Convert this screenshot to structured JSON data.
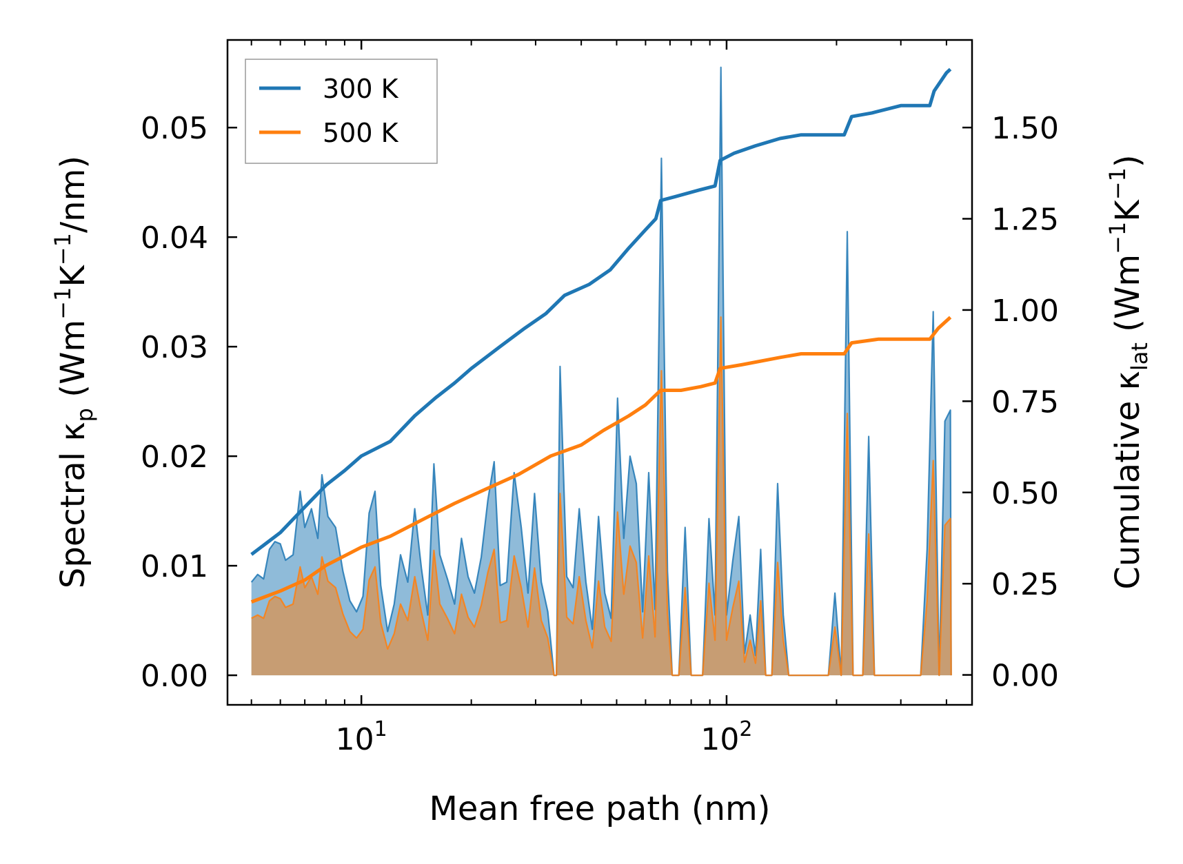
{
  "chart_data": {
    "type": "line",
    "xscale": "log",
    "xlim": [
      4.3,
      470
    ],
    "ylim_left": [
      -0.0027,
      0.058
    ],
    "ylim_right": [
      -0.082,
      1.74
    ],
    "xlabel": "Mean free path (nm)",
    "ylabel_left_prefix": "Spectral κ",
    "ylabel_left_sub": "p",
    "ylabel_left_suffix1": " (Wm",
    "ylabel_left_sup1": "−1",
    "ylabel_left_suffix2": "K",
    "ylabel_left_sup2": "−1",
    "ylabel_left_suffix3": "/nm)",
    "ylabel_right_prefix": "Cumulative κ",
    "ylabel_right_sub": "lat",
    "ylabel_right_suffix1": " (Wm",
    "ylabel_right_sup1": "−1",
    "ylabel_right_suffix2": "K",
    "ylabel_right_sup2": "−1",
    "ylabel_right_suffix3": ")",
    "x_ticks": [
      {
        "base": "10",
        "exp": "1",
        "value": 10
      },
      {
        "base": "10",
        "exp": "2",
        "value": 100
      }
    ],
    "y_ticks_left": [
      "0.00",
      "0.01",
      "0.02",
      "0.03",
      "0.04",
      "0.05"
    ],
    "y_ticks_right": [
      "0.00",
      "0.25",
      "0.50",
      "0.75",
      "1.00",
      "1.25",
      "1.50"
    ],
    "legend": {
      "position": "top-left",
      "entries": [
        {
          "label": "300 K",
          "color": "#1f77b4"
        },
        {
          "label": "500 K",
          "color": "#ff7f0e"
        }
      ]
    },
    "cumulative": [
      {
        "name": "300 K",
        "color": "#1f77b4",
        "points": [
          [
            5,
            0.33
          ],
          [
            6,
            0.39
          ],
          [
            7,
            0.46
          ],
          [
            8,
            0.52
          ],
          [
            9,
            0.56
          ],
          [
            10,
            0.6
          ],
          [
            12,
            0.64
          ],
          [
            14,
            0.71
          ],
          [
            16,
            0.76
          ],
          [
            18,
            0.8
          ],
          [
            20,
            0.84
          ],
          [
            24,
            0.9
          ],
          [
            28,
            0.95
          ],
          [
            32,
            0.99
          ],
          [
            36,
            1.04
          ],
          [
            42,
            1.07
          ],
          [
            48,
            1.11
          ],
          [
            54,
            1.17
          ],
          [
            60,
            1.22
          ],
          [
            64,
            1.25
          ],
          [
            66,
            1.3
          ],
          [
            72,
            1.31
          ],
          [
            85,
            1.33
          ],
          [
            93,
            1.34
          ],
          [
            96,
            1.41
          ],
          [
            105,
            1.43
          ],
          [
            120,
            1.45
          ],
          [
            140,
            1.47
          ],
          [
            160,
            1.48
          ],
          [
            210,
            1.48
          ],
          [
            220,
            1.53
          ],
          [
            250,
            1.54
          ],
          [
            300,
            1.56
          ],
          [
            360,
            1.56
          ],
          [
            370,
            1.6
          ],
          [
            400,
            1.65
          ],
          [
            410,
            1.66
          ]
        ]
      },
      {
        "name": "500 K",
        "color": "#ff7f0e",
        "points": [
          [
            5,
            0.2
          ],
          [
            6,
            0.23
          ],
          [
            7,
            0.26
          ],
          [
            8,
            0.3
          ],
          [
            10,
            0.35
          ],
          [
            12,
            0.38
          ],
          [
            15,
            0.43
          ],
          [
            18,
            0.47
          ],
          [
            22,
            0.51
          ],
          [
            27,
            0.55
          ],
          [
            33,
            0.6
          ],
          [
            40,
            0.63
          ],
          [
            46,
            0.67
          ],
          [
            54,
            0.71
          ],
          [
            60,
            0.74
          ],
          [
            66,
            0.78
          ],
          [
            75,
            0.78
          ],
          [
            85,
            0.79
          ],
          [
            93,
            0.8
          ],
          [
            96,
            0.84
          ],
          [
            110,
            0.85
          ],
          [
            140,
            0.87
          ],
          [
            160,
            0.88
          ],
          [
            210,
            0.88
          ],
          [
            220,
            0.91
          ],
          [
            260,
            0.92
          ],
          [
            360,
            0.92
          ],
          [
            380,
            0.95
          ],
          [
            410,
            0.98
          ]
        ]
      }
    ],
    "spectral": [
      {
        "name": "300 K",
        "color": "#1f77b4",
        "points": [
          [
            5,
            0.0085
          ],
          [
            5.2,
            0.0092
          ],
          [
            5.4,
            0.0088
          ],
          [
            5.6,
            0.0115
          ],
          [
            5.8,
            0.0122
          ],
          [
            6.0,
            0.012
          ],
          [
            6.2,
            0.0105
          ],
          [
            6.5,
            0.011
          ],
          [
            6.8,
            0.0168
          ],
          [
            7.0,
            0.0135
          ],
          [
            7.3,
            0.0152
          ],
          [
            7.6,
            0.0125
          ],
          [
            7.8,
            0.0183
          ],
          [
            8.1,
            0.0145
          ],
          [
            8.5,
            0.0135
          ],
          [
            8.9,
            0.0095
          ],
          [
            9.3,
            0.0068
          ],
          [
            9.7,
            0.0058
          ],
          [
            10.1,
            0.0072
          ],
          [
            10.5,
            0.0148
          ],
          [
            10.9,
            0.0168
          ],
          [
            11.3,
            0.0082
          ],
          [
            11.8,
            0.004
          ],
          [
            12.3,
            0.0065
          ],
          [
            12.8,
            0.011
          ],
          [
            13.4,
            0.0085
          ],
          [
            14.0,
            0.0152
          ],
          [
            14.6,
            0.0098
          ],
          [
            15.2,
            0.0055
          ],
          [
            15.8,
            0.0193
          ],
          [
            16.4,
            0.011
          ],
          [
            17.2,
            0.0088
          ],
          [
            18.0,
            0.0065
          ],
          [
            18.8,
            0.0125
          ],
          [
            19.6,
            0.009
          ],
          [
            20.4,
            0.0075
          ],
          [
            21.3,
            0.0108
          ],
          [
            22.2,
            0.016
          ],
          [
            23.1,
            0.0195
          ],
          [
            24.0,
            0.0082
          ],
          [
            25.0,
            0.0085
          ],
          [
            26.2,
            0.0185
          ],
          [
            27.4,
            0.0135
          ],
          [
            28.6,
            0.0075
          ],
          [
            29.8,
            0.0166
          ],
          [
            31.1,
            0.0085
          ],
          [
            32.4,
            0.0058
          ],
          [
            33.7,
            0.0
          ],
          [
            34.2,
            0.0
          ],
          [
            35.0,
            0.0282
          ],
          [
            36.5,
            0.009
          ],
          [
            38.0,
            0.008
          ],
          [
            39.5,
            0.0152
          ],
          [
            41.2,
            0.0085
          ],
          [
            42.9,
            0.0042
          ],
          [
            44.6,
            0.0145
          ],
          [
            46.4,
            0.0075
          ],
          [
            48.3,
            0.0052
          ],
          [
            50.3,
            0.0253
          ],
          [
            52.3,
            0.0125
          ],
          [
            54.4,
            0.02
          ],
          [
            56.6,
            0.0175
          ],
          [
            58.9,
            0.0058
          ],
          [
            61.2,
            0.0185
          ],
          [
            63.7,
            0.006
          ],
          [
            66.3,
            0.0472
          ],
          [
            68.9,
            0.0095
          ],
          [
            71.0,
            0.0
          ],
          [
            74.0,
            0.0
          ],
          [
            77.0,
            0.0135
          ],
          [
            80.0,
            0.0
          ],
          [
            86.0,
            0.0
          ],
          [
            89.5,
            0.0143
          ],
          [
            93.0,
            0.0055
          ],
          [
            96.5,
            0.0555
          ],
          [
            100.0,
            0.0055
          ],
          [
            104.0,
            0.0105
          ],
          [
            108.0,
            0.0145
          ],
          [
            112.0,
            0.002
          ],
          [
            116.0,
            0.0055
          ],
          [
            120.0,
            0.0018
          ],
          [
            124.0,
            0.0115
          ],
          [
            128.0,
            0.0
          ],
          [
            133.0,
            0.0
          ],
          [
            138.0,
            0.0175
          ],
          [
            143.0,
            0.0055
          ],
          [
            148.0,
            0.0
          ],
          [
            190.0,
            0.0
          ],
          [
            198.0,
            0.0075
          ],
          [
            206.0,
            0.0
          ],
          [
            214.0,
            0.0405
          ],
          [
            222.0,
            0.0
          ],
          [
            236.0,
            0.0
          ],
          [
            245.0,
            0.0218
          ],
          [
            254.0,
            0.0
          ],
          [
            340.0,
            0.0
          ],
          [
            354.0,
            0.0115
          ],
          [
            368.0,
            0.0332
          ],
          [
            382.0,
            0.0
          ],
          [
            396.0,
            0.0232
          ],
          [
            410.0,
            0.0242
          ],
          [
            412.0,
            0.0
          ]
        ]
      },
      {
        "name": "500 K",
        "color": "#ff7f0e",
        "points": [
          [
            5,
            0.0052
          ],
          [
            5.2,
            0.0055
          ],
          [
            5.4,
            0.0052
          ],
          [
            5.6,
            0.0068
          ],
          [
            5.8,
            0.0072
          ],
          [
            6.0,
            0.007
          ],
          [
            6.2,
            0.0062
          ],
          [
            6.5,
            0.0065
          ],
          [
            6.8,
            0.0099
          ],
          [
            7.0,
            0.008
          ],
          [
            7.3,
            0.009
          ],
          [
            7.6,
            0.0074
          ],
          [
            7.8,
            0.0108
          ],
          [
            8.1,
            0.0086
          ],
          [
            8.5,
            0.008
          ],
          [
            8.9,
            0.0056
          ],
          [
            9.3,
            0.004
          ],
          [
            9.7,
            0.0034
          ],
          [
            10.1,
            0.0042
          ],
          [
            10.5,
            0.0087
          ],
          [
            10.9,
            0.0099
          ],
          [
            11.3,
            0.0048
          ],
          [
            11.8,
            0.0024
          ],
          [
            12.3,
            0.0038
          ],
          [
            12.8,
            0.0065
          ],
          [
            13.4,
            0.005
          ],
          [
            14.0,
            0.009
          ],
          [
            14.6,
            0.0058
          ],
          [
            15.2,
            0.0032
          ],
          [
            15.8,
            0.0114
          ],
          [
            16.4,
            0.0065
          ],
          [
            17.2,
            0.0052
          ],
          [
            18.0,
            0.0038
          ],
          [
            18.8,
            0.0074
          ],
          [
            19.6,
            0.0053
          ],
          [
            20.4,
            0.0044
          ],
          [
            21.3,
            0.0064
          ],
          [
            22.2,
            0.0094
          ],
          [
            23.1,
            0.0115
          ],
          [
            24.0,
            0.0048
          ],
          [
            25.0,
            0.005
          ],
          [
            26.2,
            0.0109
          ],
          [
            27.4,
            0.008
          ],
          [
            28.6,
            0.0044
          ],
          [
            29.8,
            0.0098
          ],
          [
            31.1,
            0.005
          ],
          [
            32.4,
            0.0034
          ],
          [
            33.7,
            0.0
          ],
          [
            34.2,
            0.0
          ],
          [
            35.0,
            0.0166
          ],
          [
            36.5,
            0.0053
          ],
          [
            38.0,
            0.0047
          ],
          [
            39.5,
            0.009
          ],
          [
            41.2,
            0.005
          ],
          [
            42.9,
            0.0025
          ],
          [
            44.6,
            0.0086
          ],
          [
            46.4,
            0.0044
          ],
          [
            48.3,
            0.0031
          ],
          [
            50.3,
            0.0149
          ],
          [
            52.3,
            0.0074
          ],
          [
            54.4,
            0.0118
          ],
          [
            56.6,
            0.0103
          ],
          [
            58.9,
            0.0034
          ],
          [
            61.2,
            0.0109
          ],
          [
            63.7,
            0.0035
          ],
          [
            66.3,
            0.0278
          ],
          [
            68.9,
            0.0056
          ],
          [
            71.0,
            0.0
          ],
          [
            74.0,
            0.0
          ],
          [
            77.0,
            0.008
          ],
          [
            80.0,
            0.0
          ],
          [
            86.0,
            0.0
          ],
          [
            89.5,
            0.0084
          ],
          [
            93.0,
            0.0032
          ],
          [
            96.5,
            0.0327
          ],
          [
            100.0,
            0.0032
          ],
          [
            104.0,
            0.0062
          ],
          [
            108.0,
            0.0086
          ],
          [
            112.0,
            0.0012
          ],
          [
            116.0,
            0.0032
          ],
          [
            120.0,
            0.0011
          ],
          [
            124.0,
            0.0068
          ],
          [
            128.0,
            0.0
          ],
          [
            133.0,
            0.0
          ],
          [
            138.0,
            0.0103
          ],
          [
            143.0,
            0.0032
          ],
          [
            148.0,
            0.0
          ],
          [
            190.0,
            0.0
          ],
          [
            198.0,
            0.0044
          ],
          [
            206.0,
            0.0
          ],
          [
            214.0,
            0.0239
          ],
          [
            222.0,
            0.0
          ],
          [
            236.0,
            0.0
          ],
          [
            245.0,
            0.0129
          ],
          [
            254.0,
            0.0
          ],
          [
            340.0,
            0.0
          ],
          [
            354.0,
            0.0068
          ],
          [
            368.0,
            0.0196
          ],
          [
            382.0,
            0.0
          ],
          [
            396.0,
            0.0137
          ],
          [
            410.0,
            0.0143
          ],
          [
            412.0,
            0.0
          ]
        ]
      }
    ]
  }
}
